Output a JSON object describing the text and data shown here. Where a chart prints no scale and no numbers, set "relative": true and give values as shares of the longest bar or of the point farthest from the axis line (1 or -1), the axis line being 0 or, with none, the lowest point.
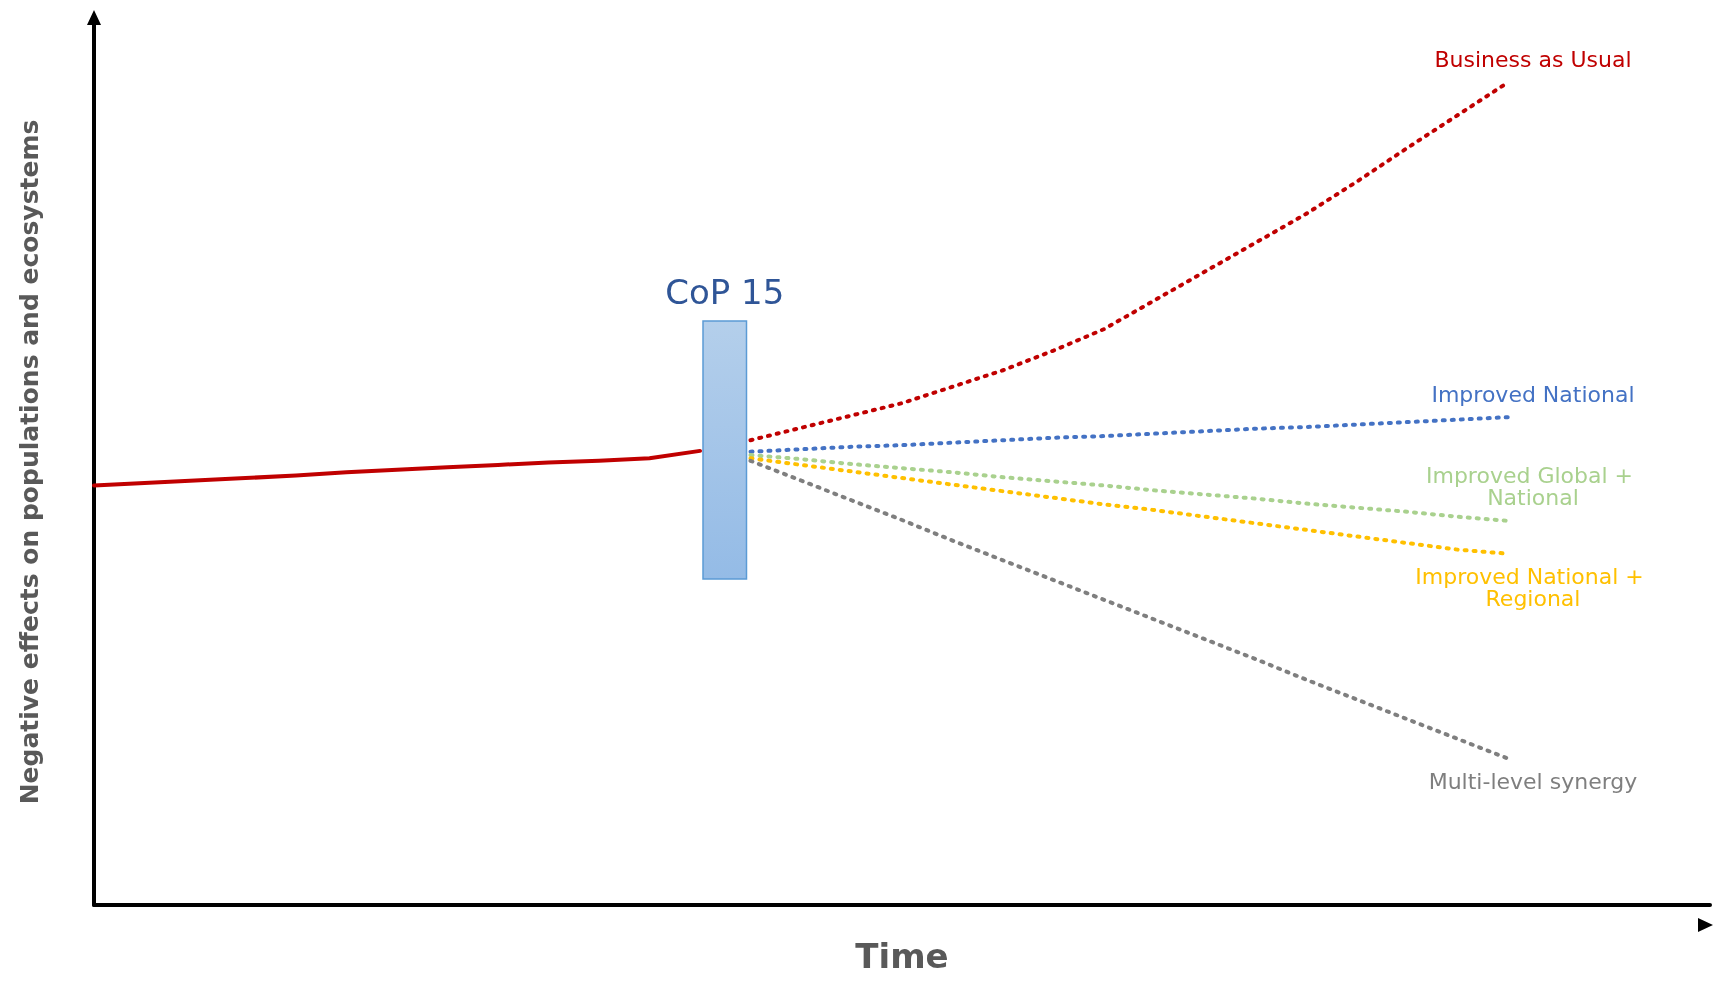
{
  "chart_data": {
    "type": "line",
    "relative": true,
    "xlabel": "Time",
    "ylabel": "Negative effects on populations and ecosystems",
    "annotations": [
      "CoP 15"
    ],
    "legend": false,
    "grid": false,
    "marker": "none",
    "categories": [
      null,
      null,
      null,
      null,
      null,
      null,
      null,
      null,
      null,
      null,
      null,
      null,
      null,
      null,
      null,
      null,
      null,
      null,
      null,
      null,
      null,
      null,
      null,
      null,
      null,
      null,
      null,
      null,
      null,
      null,
      null,
      null,
      null
    ],
    "series": [
      {
        "color": "#c00000",
        "line_style": "solid",
        "values": [
          0.51,
          0.513,
          0.516,
          0.519,
          0.522,
          0.526,
          0.529,
          0.532,
          0.535,
          0.538,
          0.54,
          0.543,
          0.552,
          null,
          null,
          null,
          null,
          null,
          null,
          null,
          null,
          null,
          null,
          null,
          null,
          null,
          null,
          null,
          null,
          null,
          null,
          null,
          null
        ]
      },
      {
        "name": "Business as Usual",
        "color": "#c00000",
        "line_style": "dotted",
        "values": [
          null,
          null,
          null,
          null,
          null,
          null,
          null,
          null,
          null,
          null,
          null,
          null,
          null,
          0.565,
          0.58,
          0.595,
          0.61,
          0.63,
          0.65,
          0.674,
          0.7,
          0.735,
          0.77,
          0.805,
          0.84,
          0.879,
          0.92,
          0.96,
          1.0,
          null,
          null,
          null,
          null
        ]
      },
      {
        "name": "Improved National",
        "color": "#4472c4",
        "line_style": "dotted",
        "values": [
          null,
          null,
          null,
          null,
          null,
          null,
          null,
          null,
          null,
          null,
          null,
          null,
          null,
          0.551,
          0.554,
          0.557,
          0.559,
          0.562,
          0.565,
          0.568,
          0.57,
          0.573,
          0.576,
          0.579,
          0.581,
          0.584,
          0.587,
          0.59,
          0.593,
          null,
          null,
          null,
          null
        ]
      },
      {
        "name": "Improved Global + National",
        "color": "#a9d18e",
        "line_style": "dotted",
        "values": [
          null,
          null,
          null,
          null,
          null,
          null,
          null,
          null,
          null,
          null,
          null,
          null,
          null,
          0.547,
          0.542,
          0.536,
          0.531,
          0.526,
          0.52,
          0.515,
          0.51,
          0.504,
          0.499,
          0.494,
          0.488,
          0.483,
          0.478,
          0.472,
          0.467,
          null,
          null,
          null,
          null
        ]
      },
      {
        "name": "Improved National + Regional",
        "color": "#ffc000",
        "line_style": "dotted",
        "values": [
          null,
          null,
          null,
          null,
          null,
          null,
          null,
          null,
          null,
          null,
          null,
          null,
          null,
          0.543,
          0.535,
          0.527,
          0.519,
          0.511,
          0.503,
          0.495,
          0.487,
          0.48,
          0.472,
          0.464,
          0.456,
          0.448,
          0.44,
          0.432,
          0.427,
          null,
          null,
          null,
          null
        ]
      },
      {
        "name": "Multi-level synergy",
        "color": "#7f7f7f",
        "line_style": "dotted",
        "values": [
          null,
          null,
          null,
          null,
          null,
          null,
          null,
          null,
          null,
          null,
          null,
          null,
          null,
          0.54,
          0.516,
          0.492,
          0.468,
          0.443,
          0.419,
          0.395,
          0.371,
          0.347,
          0.323,
          0.299,
          0.274,
          0.25,
          0.226,
          0.202,
          0.178,
          null,
          null,
          null,
          null
        ]
      }
    ]
  }
}
